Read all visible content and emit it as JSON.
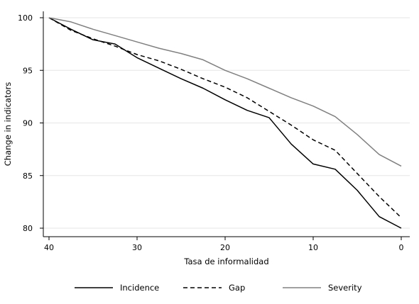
{
  "chart_data": {
    "type": "line",
    "xlabel": "Tasa de informalidad",
    "ylabel": "Change in indicators",
    "xlim": [
      40,
      0
    ],
    "ylim": [
      80,
      100
    ],
    "x_reversed": true,
    "xticks": [
      40,
      30,
      20,
      10,
      0
    ],
    "yticks": [
      80,
      85,
      90,
      95,
      100
    ],
    "grid": "horizontal",
    "legend_position": "bottom",
    "series": [
      {
        "name": "Incidence",
        "color": "#000000",
        "dash": "solid",
        "x": [
          40,
          37.5,
          35,
          32.5,
          30,
          27.5,
          25,
          22.5,
          20,
          17.5,
          15,
          12.5,
          10,
          7.5,
          5,
          2.5,
          0
        ],
        "y": [
          100,
          98.9,
          97.9,
          97.5,
          96.2,
          95.2,
          94.2,
          93.3,
          92.2,
          91.2,
          90.5,
          88.0,
          86.1,
          85.6,
          83.6,
          81.1,
          80.0
        ]
      },
      {
        "name": "Gap",
        "color": "#000000",
        "dash": "dashed",
        "x": [
          40,
          37.5,
          35,
          32.5,
          30,
          27.5,
          25,
          22.5,
          20,
          17.5,
          15,
          12.5,
          10,
          7.5,
          5,
          2.5,
          0
        ],
        "y": [
          100,
          98.8,
          98.0,
          97.3,
          96.5,
          95.9,
          95.1,
          94.2,
          93.4,
          92.4,
          91.1,
          89.8,
          88.4,
          87.4,
          85.2,
          83.0,
          81.0
        ]
      },
      {
        "name": "Severity",
        "color": "#808080",
        "dash": "solid",
        "x": [
          40,
          37.5,
          35,
          32.5,
          30,
          27.5,
          25,
          22.5,
          20,
          17.5,
          15,
          12.5,
          10,
          7.5,
          5,
          2.5,
          0
        ],
        "y": [
          100,
          99.6,
          98.9,
          98.3,
          97.7,
          97.1,
          96.6,
          96.0,
          95.0,
          94.2,
          93.3,
          92.4,
          91.6,
          90.6,
          88.9,
          87.0,
          85.9
        ]
      }
    ]
  }
}
